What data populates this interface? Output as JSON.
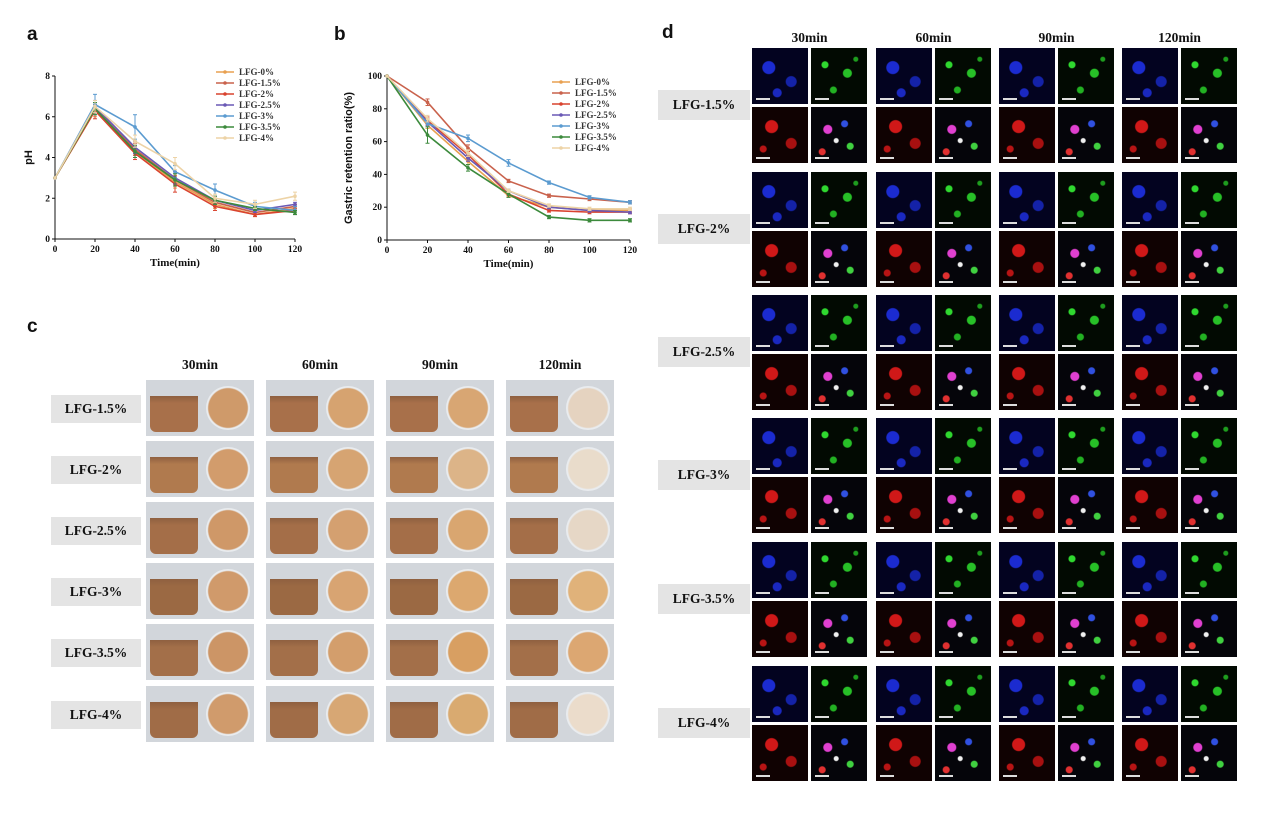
{
  "panels": {
    "a": "a",
    "b": "b",
    "c": "c",
    "d": "d"
  },
  "colors": {
    "LFG-0%": "#e8a050",
    "LFG-1.5%": "#c9624c",
    "LFG-2%": "#d9432f",
    "LFG-2.5%": "#6a59b5",
    "LFG-3%": "#5b9bd0",
    "LFG-3.5%": "#3c8a3c",
    "LFG-4%": "#edd3a6"
  },
  "chart_data": [
    {
      "type": "line",
      "ylabel": "pH",
      "xlabel": "Time(min)",
      "x": [
        0,
        20,
        40,
        60,
        80,
        100,
        120
      ],
      "xlim": [
        0,
        120
      ],
      "ylim": [
        0,
        8
      ],
      "xticks": [
        "0",
        "20",
        "40",
        "60",
        "80",
        "100",
        "120"
      ],
      "yticks": [
        "0",
        "2",
        "4",
        "6",
        "8"
      ],
      "legend_position": "top-right",
      "series": [
        {
          "name": "LFG-0%",
          "values": [
            3.0,
            6.3,
            4.3,
            2.8,
            1.7,
            1.2,
            1.5
          ],
          "err": [
            0,
            0.3,
            0.3,
            0.3,
            0.2,
            0.1,
            0.1
          ]
        },
        {
          "name": "LFG-1.5%",
          "values": [
            3.0,
            6.4,
            4.4,
            2.9,
            1.8,
            1.3,
            1.6
          ],
          "err": [
            0,
            0.3,
            0.3,
            0.3,
            0.2,
            0.1,
            0.1
          ]
        },
        {
          "name": "LFG-2%",
          "values": [
            3.0,
            6.3,
            4.2,
            2.7,
            1.6,
            1.2,
            1.4
          ],
          "err": [
            0,
            0.4,
            0.3,
            0.4,
            0.2,
            0.1,
            0.2
          ]
        },
        {
          "name": "LFG-2.5%",
          "values": [
            3.0,
            6.5,
            4.5,
            3.0,
            1.9,
            1.4,
            1.7
          ],
          "err": [
            0,
            0.3,
            0.3,
            0.3,
            0.2,
            0.1,
            0.1
          ]
        },
        {
          "name": "LFG-3%",
          "values": [
            3.0,
            6.6,
            5.5,
            3.3,
            2.4,
            1.6,
            1.4
          ],
          "err": [
            0,
            0.5,
            0.6,
            0.3,
            0.3,
            0.2,
            0.2
          ]
        },
        {
          "name": "LFG-3.5%",
          "values": [
            3.0,
            6.4,
            4.3,
            2.9,
            1.9,
            1.5,
            1.3
          ],
          "err": [
            0,
            0.3,
            0.3,
            0.3,
            0.2,
            0.1,
            0.1
          ]
        },
        {
          "name": "LFG-4%",
          "values": [
            3.0,
            6.5,
            4.8,
            3.7,
            2.0,
            1.7,
            2.1
          ],
          "err": [
            0,
            0.3,
            0.3,
            0.3,
            0.2,
            0.2,
            0.2
          ]
        }
      ]
    },
    {
      "type": "line",
      "ylabel": "Gastric retention ratio(%)",
      "xlabel": "Time(min)",
      "x": [
        0,
        20,
        40,
        60,
        80,
        100,
        120
      ],
      "xlim": [
        0,
        120
      ],
      "ylim": [
        0,
        100
      ],
      "xticks": [
        "0",
        "20",
        "40",
        "60",
        "80",
        "100",
        "120"
      ],
      "yticks": [
        "0",
        "20",
        "40",
        "60",
        "80",
        "100"
      ],
      "legend_position": "top-right",
      "series": [
        {
          "name": "LFG-0%",
          "values": [
            100,
            70,
            48,
            27,
            20,
            18,
            18
          ],
          "err": [
            0,
            2,
            2,
            1,
            1,
            1,
            1
          ]
        },
        {
          "name": "LFG-1.5%",
          "values": [
            100,
            84,
            56,
            36,
            27,
            25,
            23
          ],
          "err": [
            0,
            2,
            2,
            1,
            1,
            1,
            1
          ]
        },
        {
          "name": "LFG-2%",
          "values": [
            100,
            73,
            52,
            28,
            18,
            17,
            17
          ],
          "err": [
            0,
            2,
            2,
            1,
            1,
            1,
            1
          ]
        },
        {
          "name": "LFG-2.5%",
          "values": [
            100,
            72,
            50,
            30,
            20,
            18,
            17
          ],
          "err": [
            0,
            2,
            2,
            1,
            1,
            1,
            1
          ]
        },
        {
          "name": "LFG-3%",
          "values": [
            100,
            71,
            62,
            47,
            35,
            26,
            23
          ],
          "err": [
            0,
            2,
            2,
            2,
            1,
            1,
            1
          ]
        },
        {
          "name": "LFG-3.5%",
          "values": [
            100,
            64,
            44,
            28,
            14,
            12,
            12
          ],
          "err": [
            0,
            5,
            2,
            2,
            1,
            1,
            1
          ]
        },
        {
          "name": "LFG-4%",
          "values": [
            100,
            74,
            53,
            30,
            21,
            19,
            19
          ],
          "err": [
            0,
            2,
            2,
            1,
            1,
            1,
            1
          ]
        }
      ]
    }
  ],
  "grid_c": {
    "times": [
      "30min",
      "60min",
      "90min",
      "120min"
    ],
    "rows": [
      "LFG-1.5%",
      "LFG-2%",
      "LFG-2.5%",
      "LFG-3%",
      "LFG-3.5%",
      "LFG-4%"
    ]
  },
  "grid_d": {
    "times": [
      "30min",
      "60min",
      "90min",
      "120min"
    ],
    "rows": [
      "LFG-1.5%",
      "LFG-2%",
      "LFG-2.5%",
      "LFG-3%",
      "LFG-3.5%",
      "LFG-4%"
    ]
  }
}
